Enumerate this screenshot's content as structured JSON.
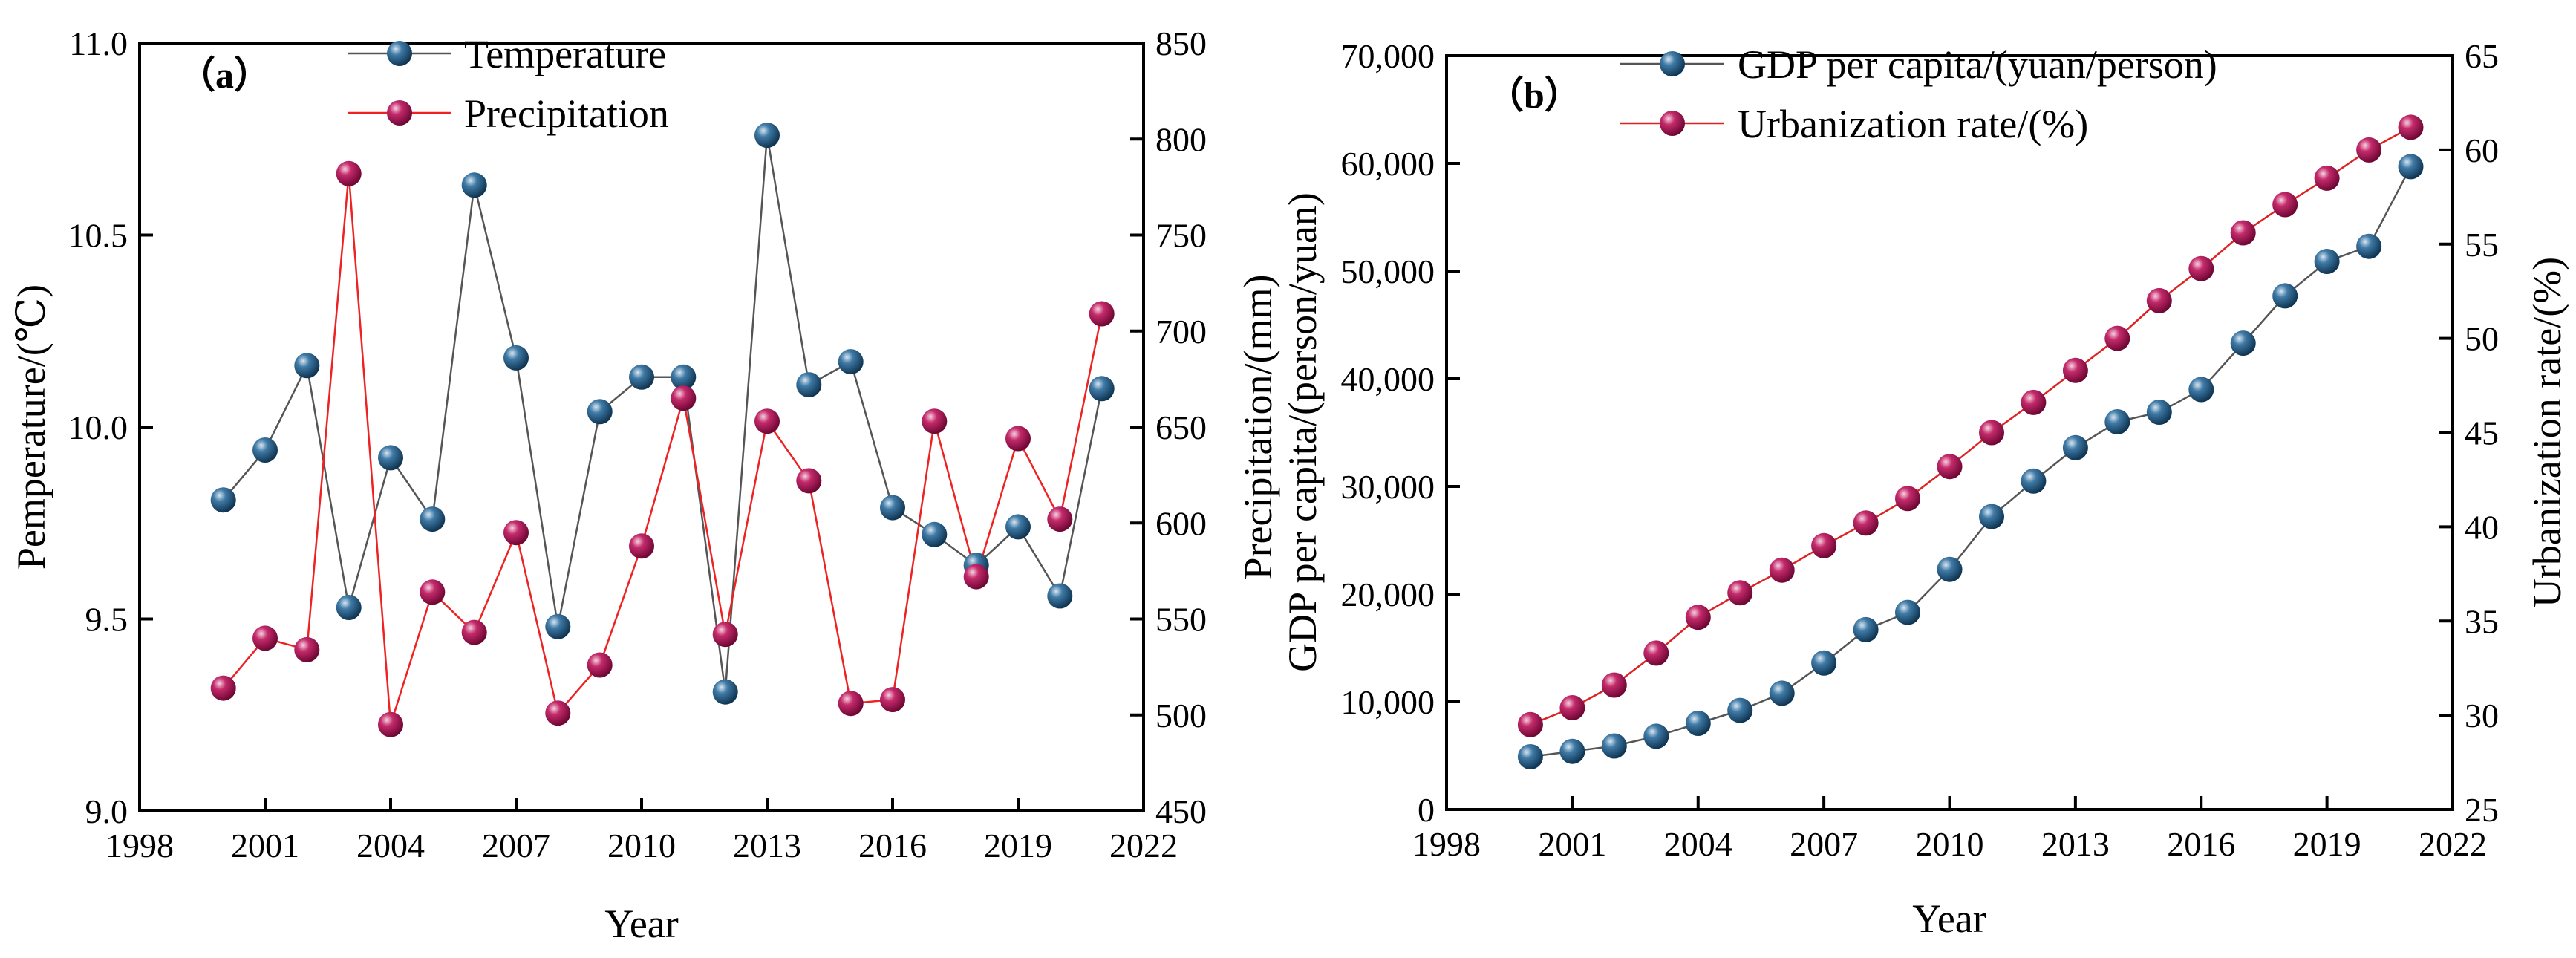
{
  "colors": {
    "temperature_line": "#555555",
    "precipitation_line": "#ee2222",
    "gdp_line": "#555555",
    "urbanization_line": "#dd2222",
    "blue_marker": "#1d4f73",
    "red_marker": "#a3104e",
    "axis": "#000000"
  },
  "chart_data": [
    {
      "type": "line",
      "panel_label": "（a）",
      "xlabel": "Year",
      "ylabel": "Pemperature/(℃)",
      "y2label": "Precipitation/(mm)",
      "xlim": [
        1998,
        2022
      ],
      "ylim": [
        9.0,
        11.0
      ],
      "y2lim": [
        450,
        850
      ],
      "xticks": [
        "1998",
        "2001",
        "2004",
        "2007",
        "2010",
        "2013",
        "2016",
        "2019",
        "2022"
      ],
      "yticks": [
        "9.0",
        "9.5",
        "10.0",
        "10.5",
        "11.0"
      ],
      "y2ticks": [
        "450",
        "500",
        "550",
        "600",
        "650",
        "700",
        "750",
        "800",
        "850"
      ],
      "x": [
        2000,
        2001,
        2002,
        2003,
        2004,
        2005,
        2006,
        2007,
        2008,
        2009,
        2010,
        2011,
        2012,
        2013,
        2014,
        2015,
        2016,
        2017,
        2018,
        2019,
        2020,
        2021
      ],
      "series": [
        {
          "name": "Temperature",
          "axis": "left",
          "values": [
            9.81,
            9.94,
            10.16,
            9.53,
            9.92,
            9.76,
            10.63,
            10.18,
            9.48,
            10.04,
            10.13,
            10.13,
            9.31,
            10.76,
            10.11,
            10.17,
            9.79,
            9.72,
            9.64,
            9.74,
            9.56,
            10.1
          ]
        },
        {
          "name": "Precipitation",
          "axis": "right",
          "values": [
            514,
            540,
            534,
            782,
            495,
            564,
            543,
            595,
            501,
            526,
            588,
            665,
            542,
            653,
            622,
            506,
            508,
            653,
            572,
            644,
            602,
            709
          ]
        }
      ]
    },
    {
      "type": "line",
      "panel_label": "（b）",
      "xlabel": "Year",
      "ylabel": "GDP per capita/(person/yuan)",
      "y2label": "Urbanization rate/(%)",
      "xlim": [
        1998,
        2022
      ],
      "ylim": [
        0,
        70000
      ],
      "y2lim": [
        25,
        65
      ],
      "xticks": [
        "1998",
        "2001",
        "2004",
        "2007",
        "2010",
        "2013",
        "2016",
        "2019",
        "2022"
      ],
      "yticks": [
        "0",
        "10,000",
        "20,000",
        "30,000",
        "40,000",
        "50,000",
        "60,000",
        "70,000"
      ],
      "y2ticks": [
        "25",
        "30",
        "35",
        "40",
        "45",
        "50",
        "55",
        "60",
        "65"
      ],
      "x": [
        2000,
        2001,
        2002,
        2003,
        2004,
        2005,
        2006,
        2007,
        2008,
        2009,
        2010,
        2011,
        2012,
        2013,
        2014,
        2015,
        2016,
        2017,
        2018,
        2019,
        2020,
        2021
      ],
      "series": [
        {
          "name": "GDP per capita/(yuan/person)",
          "axis": "left",
          "values": [
            4900,
            5400,
            5900,
            6800,
            8000,
            9200,
            10800,
            13600,
            16700,
            18300,
            22300,
            27200,
            30500,
            33600,
            36000,
            36900,
            39000,
            43300,
            47700,
            50900,
            52300,
            59700
          ]
        },
        {
          "name": "Urbanization rate/(%)",
          "axis": "right",
          "values": [
            29.5,
            30.4,
            31.6,
            33.3,
            35.2,
            36.5,
            37.7,
            39.0,
            40.2,
            41.5,
            43.2,
            45.0,
            46.6,
            48.3,
            50.0,
            52.0,
            53.7,
            55.6,
            57.1,
            58.5,
            60.0,
            61.2
          ]
        }
      ]
    }
  ]
}
